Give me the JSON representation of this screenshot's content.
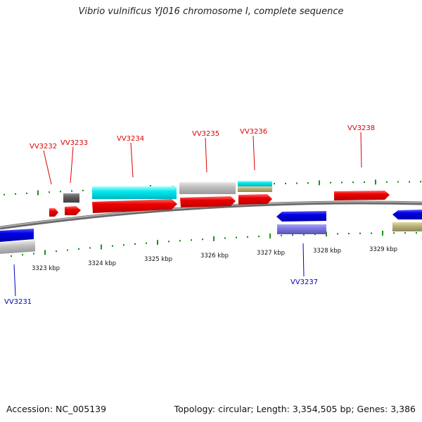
{
  "title": "Vibrio vulnificus YJ016 chromosome I, complete sequence",
  "footer": {
    "accession": "Accession: NC_005139",
    "summary": "Topology: circular; Length: 3,354,505 bp; Genes: 3,386"
  },
  "colors": {
    "forward_label": "#dd0000",
    "reverse_label": "#0000bb",
    "tick": "#008800",
    "backbone": "#808080"
  },
  "scale_labels": [
    "3323 kbp",
    "3324 kbp",
    "3325 kbp",
    "3326 kbp",
    "3327 kbp",
    "3328 kbp",
    "3329 kbp"
  ],
  "gene_labels_forward": [
    "VV3232",
    "VV3233",
    "VV3234",
    "VV3235",
    "VV3236",
    "VV3238"
  ],
  "gene_labels_reverse": [
    "VV3231",
    "VV3237"
  ]
}
